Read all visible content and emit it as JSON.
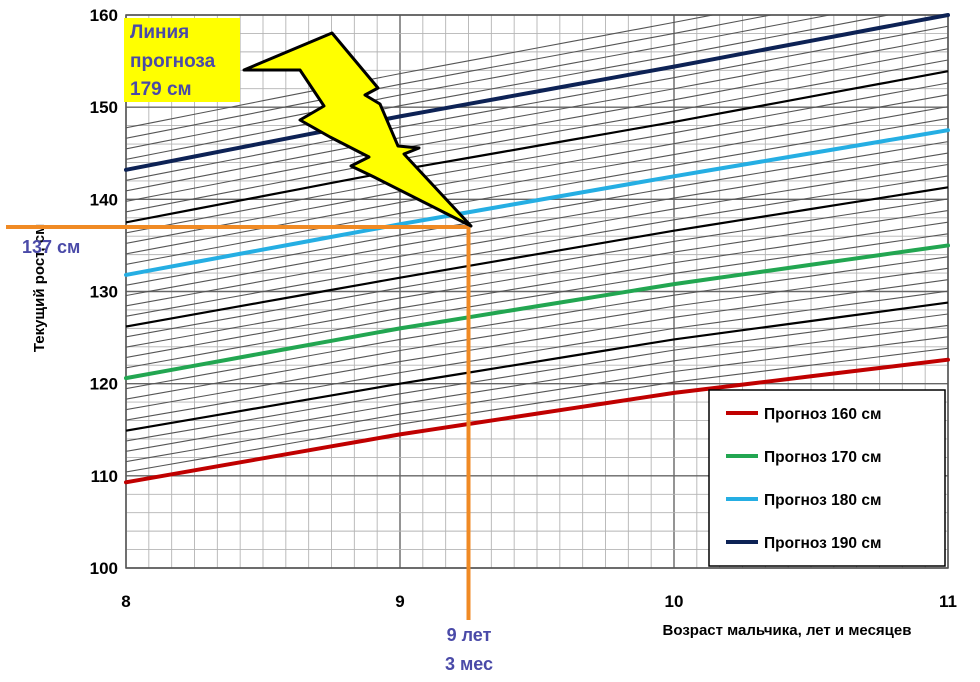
{
  "chart_data": {
    "type": "line",
    "xlabel": "Возраст мальчика, лет и месяцев",
    "ylabel": "Текущий рост, см",
    "xlim": [
      8,
      11
    ],
    "ylim": [
      100,
      160
    ],
    "x_ticks": [
      "8",
      "9",
      "10",
      "11"
    ],
    "y_ticks": [
      "100",
      "110",
      "120",
      "130",
      "140",
      "150",
      "160"
    ],
    "grid": true,
    "x": [
      8,
      9,
      10,
      11
    ],
    "series": [
      {
        "name": "Прогноз 160 см",
        "color": "#c00000",
        "values": [
          109.3,
          114.5,
          119.0,
          122.6
        ]
      },
      {
        "name": "Прогноз 170 см",
        "color": "#22a651",
        "values": [
          120.6,
          126.0,
          130.8,
          135.0
        ]
      },
      {
        "name": "Прогноз 180 см",
        "color": "#25aee3",
        "values": [
          131.8,
          137.3,
          142.5,
          147.5
        ]
      },
      {
        "name": "Прогноз 190 см",
        "color": "#0d2255",
        "values": [
          143.2,
          149.0,
          154.4,
          160.0
        ]
      }
    ],
    "intermediate_lines": {
      "color": "#000000",
      "values": [
        [
          114.9,
          120.0,
          124.8,
          128.8
        ],
        [
          126.2,
          131.5,
          136.6,
          141.3
        ],
        [
          137.5,
          143.2,
          148.4,
          153.9
        ]
      ]
    },
    "marker": {
      "x": 9.25,
      "y": 137,
      "color": "#f08a24",
      "x_label_lines": [
        "9 лет",
        "3 мес"
      ],
      "y_label": "137 см",
      "label_color": "#4a4aa8"
    },
    "callout": {
      "lines": [
        "Линия",
        "прогноза",
        "179 см"
      ],
      "background": "#ffff00",
      "text_color": "#4a4aa8",
      "bolt_color": "#ffff00"
    },
    "legend": {
      "position": "bottom-right"
    }
  }
}
